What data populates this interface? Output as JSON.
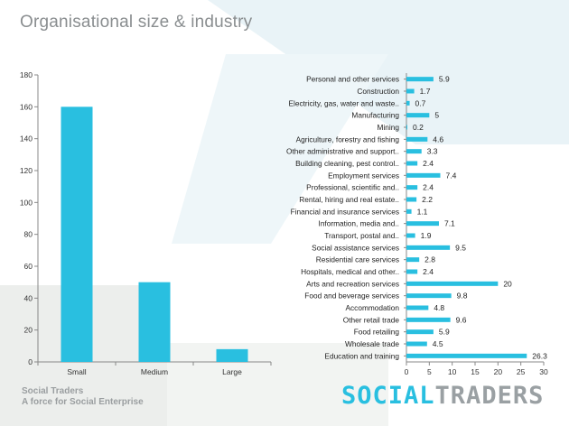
{
  "title": "Organisational size & industry",
  "footer": {
    "brand": "Social Traders",
    "tagline": "A force for Social Enterprise"
  },
  "logo": {
    "part1": "SOCIAL",
    "part2": "TRADERS",
    "color1": "#29bfe0",
    "color2": "#9aa0a3"
  },
  "colors": {
    "bar": "#29bfe0",
    "axis": "#888888"
  },
  "chart_data": [
    {
      "type": "bar",
      "categories": [
        "Small",
        "Medium",
        "Large"
      ],
      "values": [
        160,
        50,
        8
      ],
      "ylim": [
        0,
        180
      ],
      "yticks": [
        0,
        20,
        40,
        60,
        80,
        100,
        120,
        140,
        160,
        180
      ],
      "grid": false
    },
    {
      "type": "bar",
      "orientation": "horizontal",
      "categories": [
        "Personal and other services",
        "Construction",
        "Electricity, gas, water and waste..",
        "Manufacturing",
        "Mining",
        "Agriculture, forestry and fishing",
        "Other administrative and support..",
        "Building cleaning, pest control..",
        "Employment services",
        "Professional, scientific and..",
        "Rental, hiring and real estate..",
        "Financial and insurance services",
        "Information, media and..",
        "Transport, postal and..",
        "Social assistance services",
        "Residential care services",
        "Hospitals, medical and other..",
        "Arts and recreation services",
        "Food and beverage services",
        "Accommodation",
        "Other retail trade",
        "Food retailing",
        "Wholesale trade",
        "Education and training"
      ],
      "values": [
        5.9,
        1.7,
        0.7,
        5,
        0.2,
        4.6,
        3.3,
        2.4,
        7.4,
        2.4,
        2.2,
        1.1,
        7.1,
        1.9,
        9.5,
        2.8,
        2.4,
        20,
        9.8,
        4.8,
        9.6,
        5.9,
        4.5,
        26.3
      ],
      "xlim": [
        0,
        30
      ],
      "xticks": [
        0,
        5,
        10,
        15,
        20,
        25,
        30
      ],
      "data_labels": true,
      "grid": false
    }
  ]
}
